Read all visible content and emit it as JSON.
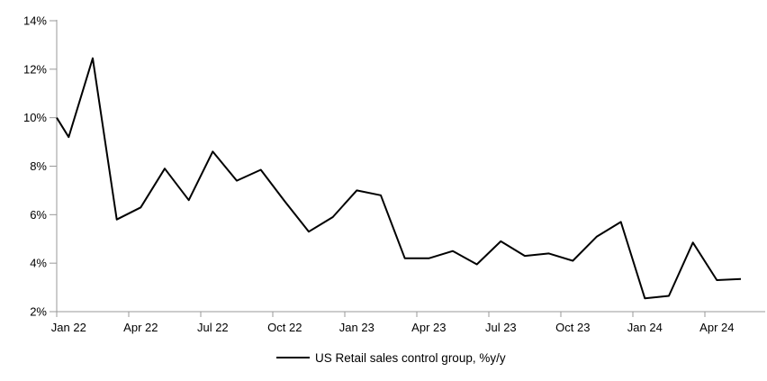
{
  "chart_data": {
    "type": "line",
    "title": "",
    "background": "#ffffff",
    "line_color": "#000000",
    "axis_color": "#999999",
    "grid": false,
    "legend_position": "bottom-center",
    "ylim": [
      2,
      14
    ],
    "y_ticks": [
      2,
      4,
      6,
      8,
      10,
      12,
      14
    ],
    "y_tick_labels": [
      "2%",
      "4%",
      "6%",
      "8%",
      "10%",
      "12%",
      "14%"
    ],
    "y_tick_suffix": "%",
    "x_tick_labels": [
      "Jan 22",
      "Apr 22",
      "Jul 22",
      "Oct 22",
      "Jan 23",
      "Apr 23",
      "Jul 23",
      "Oct 23",
      "Jan 24",
      "Apr 24"
    ],
    "x_tick_interval_months": 3,
    "x": [
      "Jan 22",
      "Feb 22",
      "Mar 22",
      "Apr 22",
      "May 22",
      "Jun 22",
      "Jul 22",
      "Aug 22",
      "Sep 22",
      "Oct 22",
      "Nov 22",
      "Dec 22",
      "Jan 23",
      "Feb 23",
      "Mar 23",
      "Apr 23",
      "May 23",
      "Jun 23",
      "Jul 23",
      "Aug 23",
      "Sep 23",
      "Oct 23",
      "Nov 23",
      "Dec 23",
      "Jan 24",
      "Feb 24",
      "Mar 24",
      "Apr 24",
      "May 24"
    ],
    "left_edge_entry_value": 10.0,
    "series": [
      {
        "name": "US Retail sales control group, %y/y",
        "color": "#000000",
        "values": [
          9.2,
          12.45,
          5.8,
          6.3,
          7.9,
          6.6,
          8.6,
          7.4,
          7.85,
          6.55,
          5.3,
          5.9,
          7.0,
          6.8,
          4.2,
          4.2,
          4.5,
          3.95,
          4.9,
          4.3,
          4.4,
          4.1,
          5.1,
          5.7,
          2.55,
          2.65,
          4.85,
          3.3,
          3.35
        ]
      }
    ]
  },
  "legend": {
    "label": "US Retail sales control group, %y/y"
  }
}
